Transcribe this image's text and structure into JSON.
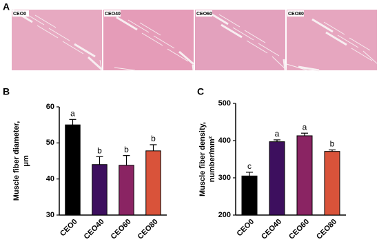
{
  "panels": [
    "A",
    "B",
    "C"
  ],
  "images": [
    "CEO0",
    "CEO40",
    "CEO60",
    "CEO80"
  ],
  "chart_data": [
    {
      "type": "bar",
      "ylabel": [
        "Muscle fiber diameter,",
        "μm"
      ],
      "categories": [
        "CEO0",
        "CEO40",
        "CEO60",
        "CEO80"
      ],
      "values": [
        55,
        44,
        43.8,
        47.8
      ],
      "errors": [
        1.5,
        2.2,
        2.7,
        1.7
      ],
      "letters": [
        "a",
        "b",
        "b",
        "b"
      ],
      "colors": [
        "#000000",
        "#3d0f5e",
        "#8a2463",
        "#d9533a"
      ],
      "ylim": [
        30,
        60
      ],
      "yticks": [
        30,
        40,
        50,
        60
      ]
    },
    {
      "type": "bar",
      "ylabel": [
        "Muscle fiber density,",
        "number/mm²"
      ],
      "categories": [
        "CEO0",
        "CEO40",
        "CEO60",
        "CEO80"
      ],
      "values": [
        305,
        397,
        413,
        371
      ],
      "errors": [
        10,
        5,
        7,
        4
      ],
      "letters": [
        "c",
        "a",
        "a",
        "b"
      ],
      "colors": [
        "#000000",
        "#3d0f5e",
        "#8a2463",
        "#d9533a"
      ],
      "ylim": [
        200,
        500
      ],
      "yticks": [
        200,
        300,
        400,
        500
      ]
    }
  ]
}
